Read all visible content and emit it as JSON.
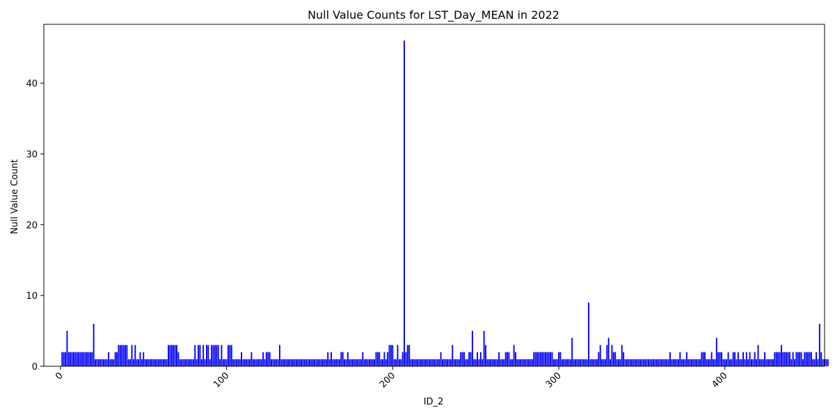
{
  "chart_data": {
    "type": "bar",
    "title": "Null Value Counts for LST_Day_MEAN in 2022",
    "xlabel": "ID_2",
    "ylabel": "Null Value Count",
    "xlim": [
      -10,
      460
    ],
    "ylim": [
      0,
      48.3
    ],
    "xticks": [
      0,
      100,
      200,
      300,
      400
    ],
    "yticks": [
      0,
      10,
      20,
      30,
      40
    ],
    "xtick_rotation": 45,
    "bar_color": "#0000ff",
    "grid": false,
    "legend": "none",
    "x_start": 1,
    "values": [
      2,
      2,
      2,
      5,
      2,
      2,
      2,
      2,
      2,
      2,
      2,
      2,
      2,
      2,
      2,
      2,
      2,
      2,
      2,
      6,
      1,
      1,
      1,
      1,
      1,
      1,
      1,
      1,
      2,
      1,
      1,
      1,
      2,
      2,
      3,
      3,
      3,
      3,
      3,
      3,
      1,
      1,
      3,
      1,
      3,
      1,
      1,
      2,
      1,
      2,
      1,
      1,
      1,
      1,
      1,
      1,
      1,
      1,
      1,
      1,
      1,
      1,
      1,
      1,
      3,
      3,
      3,
      3,
      3,
      3,
      2,
      1,
      1,
      1,
      1,
      1,
      1,
      1,
      1,
      1,
      3,
      1,
      3,
      3,
      1,
      3,
      1,
      3,
      3,
      1,
      3,
      3,
      3,
      3,
      3,
      1,
      3,
      1,
      1,
      1,
      3,
      3,
      3,
      1,
      1,
      1,
      1,
      1,
      2,
      1,
      1,
      1,
      1,
      1,
      2,
      1,
      1,
      1,
      1,
      1,
      1,
      2,
      1,
      2,
      2,
      2,
      1,
      1,
      1,
      1,
      1,
      3,
      1,
      1,
      1,
      1,
      1,
      1,
      1,
      1,
      1,
      1,
      1,
      1,
      1,
      1,
      1,
      1,
      1,
      1,
      1,
      1,
      1,
      1,
      1,
      1,
      1,
      1,
      1,
      1,
      2,
      1,
      2,
      1,
      1,
      1,
      1,
      1,
      2,
      2,
      1,
      1,
      2,
      1,
      1,
      1,
      1,
      1,
      1,
      1,
      1,
      2,
      1,
      1,
      1,
      1,
      1,
      1,
      1,
      2,
      2,
      2,
      1,
      1,
      2,
      1,
      2,
      3,
      3,
      3,
      1,
      1,
      3,
      1,
      1,
      2,
      46,
      2,
      3,
      3,
      1,
      1,
      1,
      1,
      1,
      1,
      1,
      1,
      1,
      1,
      1,
      1,
      1,
      1,
      1,
      1,
      1,
      1,
      2,
      1,
      1,
      1,
      1,
      1,
      1,
      3,
      1,
      1,
      1,
      1,
      2,
      2,
      2,
      1,
      1,
      2,
      2,
      5,
      1,
      1,
      2,
      1,
      2,
      1,
      5,
      3,
      1,
      1,
      1,
      1,
      1,
      1,
      1,
      2,
      1,
      1,
      1,
      2,
      2,
      2,
      1,
      1,
      3,
      2,
      1,
      1,
      1,
      1,
      1,
      1,
      1,
      1,
      1,
      1,
      2,
      2,
      2,
      2,
      2,
      2,
      2,
      2,
      2,
      2,
      2,
      2,
      1,
      1,
      1,
      2,
      2,
      1,
      1,
      1,
      1,
      1,
      1,
      4,
      1,
      1,
      1,
      1,
      1,
      1,
      1,
      1,
      1,
      9,
      1,
      1,
      1,
      1,
      1,
      2,
      3,
      1,
      1,
      1,
      3,
      4,
      1,
      3,
      2,
      2,
      1,
      1,
      1,
      3,
      2,
      1,
      1,
      1,
      1,
      1,
      1,
      1,
      1,
      1,
      1,
      1,
      1,
      1,
      1,
      1,
      1,
      1,
      1,
      1,
      1,
      1,
      1,
      1,
      1,
      1,
      1,
      1,
      2,
      1,
      1,
      1,
      1,
      1,
      2,
      1,
      1,
      1,
      2,
      1,
      1,
      1,
      1,
      1,
      1,
      1,
      1,
      2,
      2,
      2,
      1,
      1,
      1,
      2,
      1,
      1,
      4,
      2,
      2,
      2,
      1,
      1,
      1,
      2,
      1,
      1,
      2,
      2,
      1,
      2,
      1,
      1,
      2,
      1,
      2,
      1,
      2,
      1,
      1,
      2,
      1,
      3,
      1,
      1,
      1,
      2,
      1,
      1,
      1,
      1,
      1,
      2,
      2,
      2,
      2,
      3,
      2,
      2,
      2,
      2,
      2,
      1,
      2,
      1,
      2,
      2,
      2,
      2,
      1,
      2,
      2,
      2,
      2,
      2,
      1,
      1,
      2,
      1,
      6,
      2,
      1,
      1,
      1,
      1
    ]
  }
}
